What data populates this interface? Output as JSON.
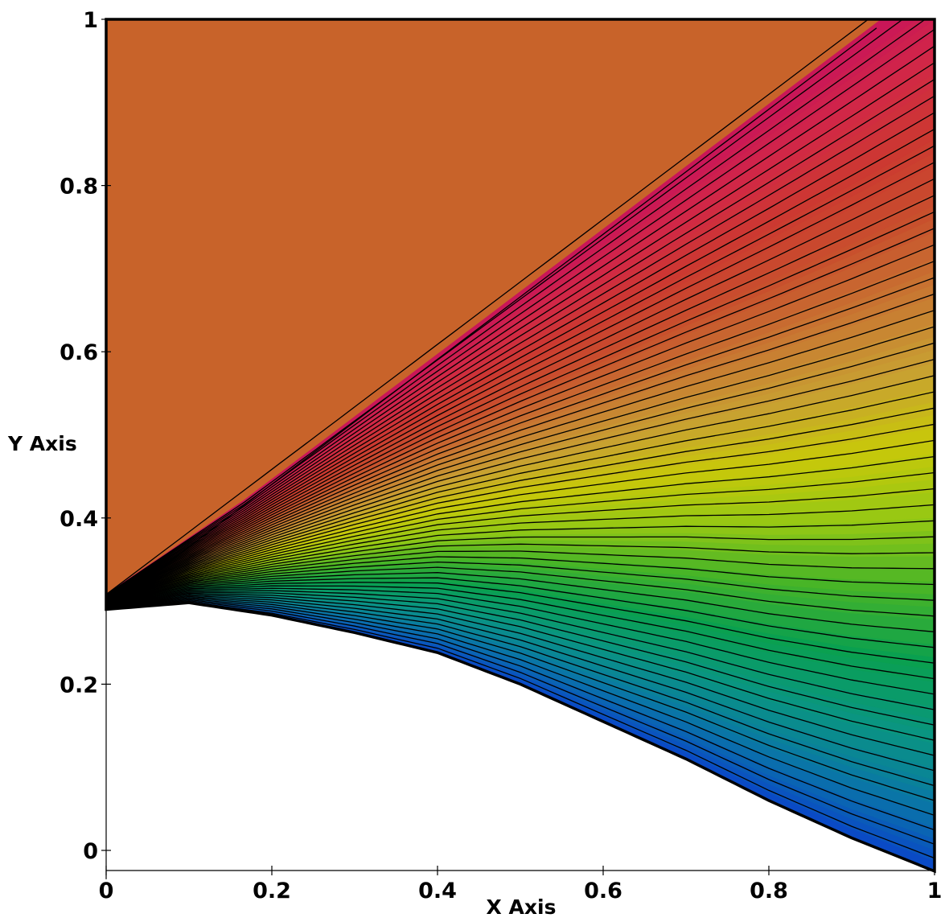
{
  "chart_data": {
    "type": "heatmap",
    "xlabel": "X Axis",
    "ylabel": "Y Axis",
    "xlim": [
      0,
      1
    ],
    "ylim": [
      -0.025,
      1
    ],
    "x_ticks": [
      {
        "value": 0,
        "label": "0"
      },
      {
        "value": 0.2,
        "label": "0.2"
      },
      {
        "value": 0.4,
        "label": "0.4"
      },
      {
        "value": 0.6,
        "label": "0.6"
      },
      {
        "value": 0.8,
        "label": "0.8"
      },
      {
        "value": 1,
        "label": "1"
      }
    ],
    "y_ticks": [
      {
        "value": 0,
        "label": "0"
      },
      {
        "value": 0.2,
        "label": "0.2"
      },
      {
        "value": 0.4,
        "label": "0.4"
      },
      {
        "value": 0.6,
        "label": "0.6"
      },
      {
        "value": 0.8,
        "label": "0.8"
      },
      {
        "value": 1,
        "label": "1"
      }
    ],
    "lower_boundary": [
      [
        0,
        0.29
      ],
      [
        0.1,
        0.298
      ],
      [
        0.2,
        0.283
      ],
      [
        0.3,
        0.262
      ],
      [
        0.4,
        0.238
      ],
      [
        0.5,
        0.2
      ],
      [
        0.6,
        0.155
      ],
      [
        0.7,
        0.11
      ],
      [
        0.8,
        0.06
      ],
      [
        0.9,
        0.015
      ],
      [
        1,
        -0.025
      ]
    ],
    "shock_line": [
      [
        0,
        0.308
      ],
      [
        0.92,
        1
      ]
    ],
    "free_stream_color": "#C8632A",
    "colormap": [
      "#0A46C8",
      "#0A78A5",
      "#0A9680",
      "#0AA050",
      "#46B428",
      "#96C814",
      "#C8C80A",
      "#C8A032",
      "#C87832",
      "#C8502D",
      "#CC3A30",
      "#D22846",
      "#C8145A"
    ],
    "contour_color": "#000000",
    "contour_levels": 56,
    "grid": false
  }
}
